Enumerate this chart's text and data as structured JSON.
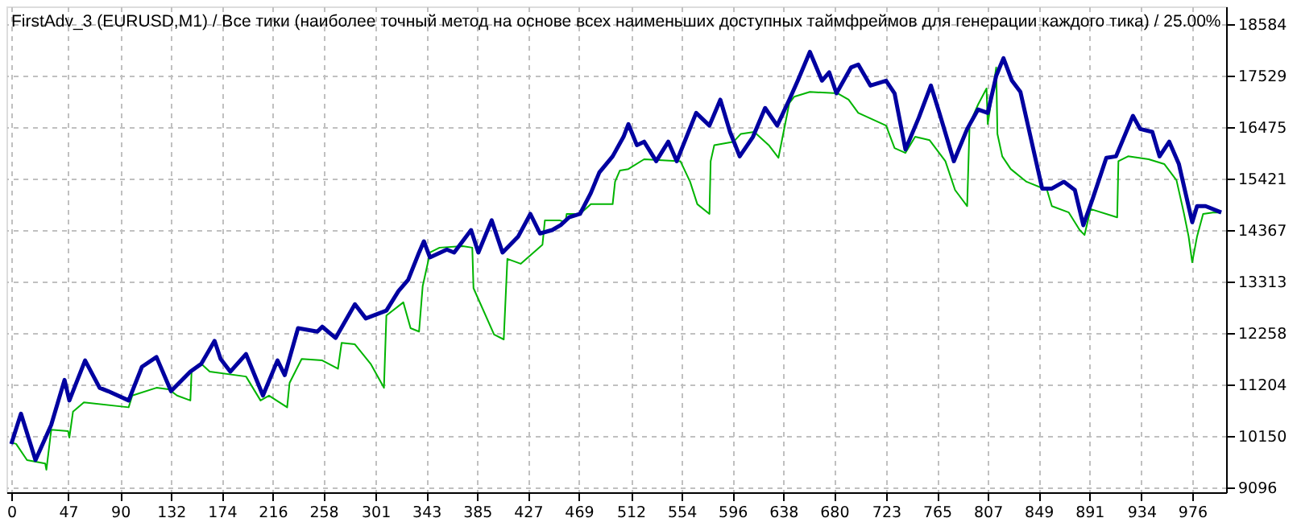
{
  "chart_data": {
    "type": "line",
    "title": "FirstAdv_3 (EURUSD,M1) / Все тики (наиболее точный метод на основе всех наименьших доступных таймфреймов для генерации каждого тика) / 25.00%",
    "xlim": [
      -4,
      1004
    ],
    "xticks": [
      0,
      47,
      90,
      132,
      174,
      216,
      258,
      301,
      343,
      385,
      427,
      469,
      512,
      554,
      596,
      638,
      680,
      723,
      765,
      807,
      849,
      891,
      934,
      976
    ],
    "ylim": [
      9000,
      18950
    ],
    "yticks": [
      9096,
      10150,
      11204,
      12258,
      13313,
      14367,
      15421,
      16475,
      17529,
      18584
    ],
    "grid": true,
    "series": [
      {
        "color": "#00b400",
        "x": [
          0,
          4,
          13,
          28,
          29,
          33,
          47,
          48,
          51,
          60,
          97,
          100,
          120,
          130,
          137,
          148,
          149,
          157,
          164,
          194,
          206,
          213,
          228,
          230,
          240,
          257,
          270,
          273,
          284,
          297,
          308,
          310,
          324,
          330,
          337,
          340,
          345,
          346,
          354,
          373,
          381,
          382,
          399,
          407,
          410,
          421,
          439,
          441,
          453,
          458,
          459,
          470,
          479,
          497,
          499,
          503,
          510,
          523,
          553,
          561,
          567,
          577,
          578,
          581,
          597,
          603,
          614,
          626,
          634,
          643,
          647,
          660,
          683,
          692,
          700,
          723,
          730,
          739,
          747,
          759,
          772,
          780,
          790,
          792,
          799,
          806,
          807,
          814,
          815,
          819,
          826,
          839,
          856,
          860,
          874,
          883,
          887,
          892,
          914,
          915,
          923,
          940,
          953,
          963,
          969,
          973,
          976,
          980,
          985,
          993,
          1000
        ],
        "values": [
          10020,
          9990,
          9660,
          9590,
          9460,
          10280,
          10250,
          10120,
          10650,
          10840,
          10740,
          10980,
          11140,
          11110,
          10980,
          10880,
          11470,
          11630,
          11470,
          11370,
          10880,
          10980,
          10740,
          11240,
          11730,
          11700,
          11530,
          12060,
          12030,
          11630,
          11140,
          12620,
          12890,
          12360,
          12290,
          13220,
          13780,
          13910,
          14010,
          14040,
          14010,
          13180,
          12230,
          12130,
          13780,
          13680,
          14070,
          14570,
          14570,
          14530,
          14700,
          14700,
          14900,
          14900,
          15360,
          15590,
          15620,
          15820,
          15780,
          15360,
          14900,
          14700,
          15780,
          16110,
          16180,
          16340,
          16380,
          16110,
          15850,
          16970,
          17100,
          17200,
          17170,
          17040,
          16770,
          16510,
          16050,
          15950,
          16280,
          16210,
          15780,
          15190,
          14860,
          16540,
          16940,
          17270,
          16540,
          17700,
          16340,
          15880,
          15620,
          15360,
          15190,
          14860,
          14730,
          14370,
          14270,
          14800,
          14630,
          15780,
          15880,
          15820,
          15720,
          15390,
          14730,
          14240,
          13710,
          14240,
          14700,
          14730,
          14730
        ]
      },
      {
        "color": "#0000a0",
        "x": [
          0,
          8,
          20,
          33,
          44,
          48,
          61,
          73,
          80,
          97,
          108,
          120,
          132,
          148,
          157,
          168,
          173,
          181,
          194,
          208,
          220,
          226,
          237,
          253,
          257,
          268,
          284,
          293,
          310,
          320,
          328,
          337,
          341,
          346,
          360,
          366,
          380,
          386,
          397,
          406,
          419,
          429,
          437,
          447,
          454,
          461,
          470,
          479,
          486,
          497,
          506,
          510,
          517,
          523,
          533,
          543,
          550,
          566,
          577,
          586,
          594,
          602,
          613,
          623,
          633,
          643,
          650,
          660,
          670,
          676,
          682,
          694,
          700,
          710,
          723,
          730,
          739,
          750,
          760,
          767,
          779,
          790,
          799,
          807,
          814,
          820,
          827,
          834,
          840,
          852,
          860,
          870,
          879,
          886,
          894,
          905,
          913,
          927,
          933,
          943,
          949,
          957,
          965,
          976,
          980,
          987,
          1000
        ],
        "values": [
          9990,
          10610,
          9660,
          10380,
          11300,
          10880,
          11700,
          11140,
          11070,
          10880,
          11570,
          11770,
          11070,
          11470,
          11630,
          12100,
          11730,
          11470,
          11830,
          10980,
          11700,
          11400,
          12360,
          12290,
          12390,
          12160,
          12850,
          12560,
          12720,
          13120,
          13350,
          13910,
          14140,
          13810,
          13970,
          13910,
          14370,
          13910,
          14570,
          13910,
          14240,
          14700,
          14300,
          14370,
          14470,
          14630,
          14700,
          15130,
          15550,
          15880,
          16280,
          16540,
          16110,
          16180,
          15780,
          16180,
          15780,
          16770,
          16510,
          17040,
          16380,
          15880,
          16280,
          16870,
          16510,
          17040,
          17430,
          18020,
          17430,
          17600,
          17170,
          17700,
          17760,
          17330,
          17430,
          17170,
          16020,
          16670,
          17330,
          16770,
          15780,
          16440,
          16840,
          16770,
          17530,
          17890,
          17430,
          17200,
          16540,
          15220,
          15220,
          15360,
          15190,
          14470,
          15030,
          15850,
          15880,
          16710,
          16440,
          16380,
          15880,
          16180,
          15720,
          14530,
          14860,
          14860,
          14730
        ]
      }
    ]
  }
}
